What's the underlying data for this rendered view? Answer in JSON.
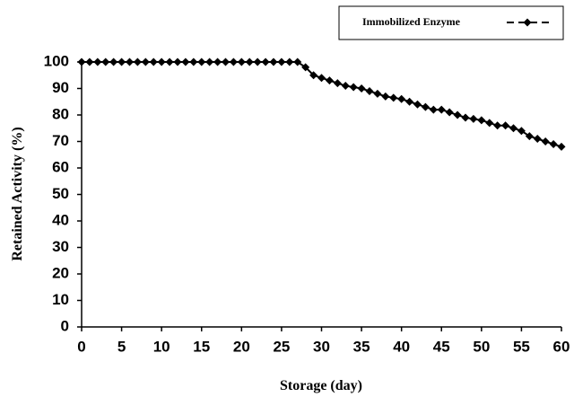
{
  "chart_data": {
    "type": "line",
    "x_label": "Storage (day)",
    "y_label": "Retained Activity (%)",
    "x": [
      0,
      1,
      2,
      3,
      4,
      5,
      6,
      7,
      8,
      9,
      10,
      11,
      12,
      13,
      14,
      15,
      16,
      17,
      18,
      19,
      20,
      21,
      22,
      23,
      24,
      25,
      26,
      27,
      28,
      29,
      30,
      31,
      32,
      33,
      34,
      35,
      36,
      37,
      38,
      39,
      40,
      41,
      42,
      43,
      44,
      45,
      46,
      47,
      48,
      49,
      50,
      51,
      52,
      53,
      54,
      55,
      56,
      57,
      58,
      59,
      60
    ],
    "series": [
      {
        "name": "Immobilized Enzyme",
        "color": "#000000",
        "values": [
          100,
          100,
          100,
          100,
          100,
          100,
          100,
          100,
          100,
          100,
          100,
          100,
          100,
          100,
          100,
          100,
          100,
          100,
          100,
          100,
          100,
          100,
          100,
          100,
          100,
          100,
          100,
          100,
          98,
          95,
          94,
          93,
          92,
          91,
          90.5,
          90,
          89,
          88,
          87,
          86.5,
          86,
          85,
          84,
          83,
          82,
          82,
          81,
          80,
          79,
          78.5,
          78,
          77,
          76,
          76,
          75,
          74,
          72,
          71,
          70,
          69,
          68
        ]
      }
    ],
    "xlim": [
      0,
      60
    ],
    "xticks": [
      0,
      5,
      10,
      15,
      20,
      25,
      30,
      35,
      40,
      45,
      50,
      55,
      60
    ],
    "ylim": [
      0,
      100
    ],
    "yticks": [
      0,
      10,
      20,
      30,
      40,
      50,
      60,
      70,
      80,
      90,
      100
    ],
    "grid": false,
    "legend": "upper right"
  }
}
